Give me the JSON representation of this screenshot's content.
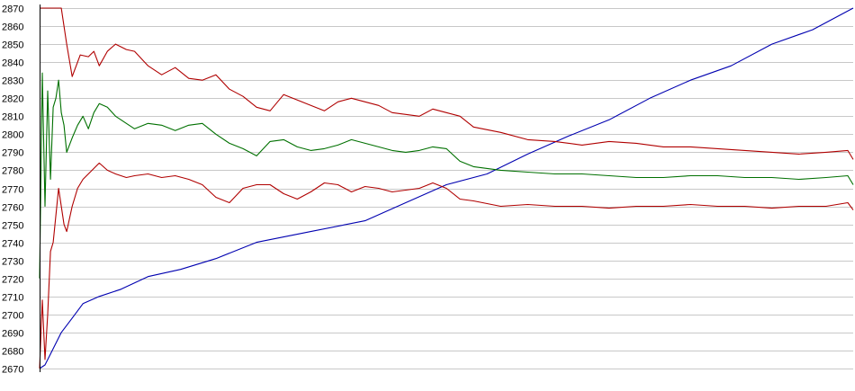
{
  "chart_data": {
    "type": "line",
    "title": "",
    "xlabel": "",
    "ylabel": "",
    "ylim": [
      2670,
      2870
    ],
    "xlim": [
      0,
      300
    ],
    "grid": true,
    "legend": "none",
    "yticks": [
      2670,
      2680,
      2690,
      2700,
      2710,
      2720,
      2730,
      2740,
      2750,
      2760,
      2770,
      2780,
      2790,
      2800,
      2810,
      2820,
      2830,
      2840,
      2850,
      2860,
      2870
    ],
    "colors": {
      "grid": "#c8c8c8",
      "axis": "#000000",
      "red": "#b00000",
      "green": "#007000",
      "blue": "#0000b0"
    },
    "series": [
      {
        "color": "#0000b0",
        "x": [
          0,
          2,
          5,
          8,
          12,
          16,
          22,
          30,
          40,
          52,
          65,
          80,
          100,
          120,
          135,
          150,
          165,
          180,
          195,
          210,
          225,
          240,
          255,
          270,
          285,
          300
        ],
        "y": [
          2670,
          2672,
          2681,
          2690,
          2698,
          2706,
          2710,
          2714,
          2721,
          2725,
          2731,
          2740,
          2746,
          2752,
          2762,
          2772,
          2778,
          2789,
          2799,
          2808,
          2820,
          2830,
          2838,
          2850,
          2858,
          2870
        ]
      },
      {
        "color": "#b00000",
        "x": [
          0,
          3,
          6,
          8,
          10,
          12,
          15,
          18,
          20,
          22,
          25,
          28,
          32,
          35,
          40,
          45,
          50,
          55,
          60,
          65,
          70,
          75,
          80,
          85,
          90,
          95,
          100,
          105,
          110,
          115,
          120,
          125,
          130,
          135,
          140,
          145,
          150,
          155,
          160,
          170,
          180,
          190,
          200,
          210,
          220,
          230,
          240,
          250,
          260,
          270,
          280,
          290,
          298,
          300
        ],
        "y": [
          2870,
          2870,
          2870,
          2870,
          2850,
          2832,
          2844,
          2843,
          2846,
          2838,
          2846,
          2850,
          2847,
          2846,
          2838,
          2833,
          2837,
          2831,
          2830,
          2833,
          2825,
          2821,
          2815,
          2813,
          2822,
          2819,
          2816,
          2813,
          2818,
          2820,
          2818,
          2816,
          2812,
          2811,
          2810,
          2814,
          2812,
          2810,
          2804,
          2801,
          2797,
          2796,
          2794,
          2796,
          2795,
          2793,
          2793,
          2792,
          2791,
          2790,
          2789,
          2790,
          2791,
          2786
        ]
      },
      {
        "color": "#007000",
        "x": [
          0,
          1,
          2,
          3,
          4,
          5,
          6,
          7,
          8,
          9,
          10,
          12,
          14,
          16,
          18,
          20,
          22,
          25,
          28,
          32,
          35,
          40,
          45,
          50,
          55,
          60,
          65,
          70,
          75,
          80,
          85,
          90,
          95,
          100,
          105,
          110,
          115,
          120,
          125,
          130,
          135,
          140,
          145,
          150,
          155,
          160,
          170,
          180,
          190,
          200,
          210,
          220,
          230,
          240,
          250,
          260,
          270,
          280,
          290,
          298,
          300
        ],
        "y": [
          2720,
          2834,
          2760,
          2824,
          2775,
          2815,
          2820,
          2830,
          2812,
          2805,
          2790,
          2798,
          2805,
          2810,
          2803,
          2812,
          2817,
          2815,
          2810,
          2806,
          2803,
          2806,
          2805,
          2802,
          2805,
          2806,
          2800,
          2795,
          2792,
          2788,
          2796,
          2797,
          2793,
          2791,
          2792,
          2794,
          2797,
          2795,
          2793,
          2791,
          2790,
          2791,
          2793,
          2792,
          2785,
          2782,
          2780,
          2779,
          2778,
          2778,
          2777,
          2776,
          2776,
          2777,
          2777,
          2776,
          2776,
          2775,
          2776,
          2777,
          2772
        ]
      },
      {
        "color": "#b00000",
        "x": [
          0,
          1,
          2,
          3,
          4,
          5,
          6,
          7,
          8,
          9,
          10,
          12,
          14,
          16,
          18,
          20,
          22,
          25,
          28,
          32,
          35,
          40,
          45,
          50,
          55,
          60,
          65,
          70,
          75,
          80,
          85,
          90,
          95,
          100,
          105,
          110,
          115,
          120,
          125,
          130,
          135,
          140,
          145,
          150,
          155,
          160,
          170,
          180,
          190,
          200,
          210,
          220,
          230,
          240,
          250,
          260,
          270,
          280,
          290,
          298,
          300
        ],
        "y": [
          2670,
          2708,
          2675,
          2700,
          2735,
          2740,
          2755,
          2770,
          2760,
          2750,
          2746,
          2760,
          2770,
          2775,
          2778,
          2781,
          2784,
          2780,
          2778,
          2776,
          2777,
          2778,
          2776,
          2777,
          2775,
          2772,
          2765,
          2762,
          2770,
          2772,
          2772,
          2767,
          2764,
          2768,
          2773,
          2772,
          2768,
          2771,
          2770,
          2768,
          2769,
          2770,
          2773,
          2770,
          2764,
          2763,
          2760,
          2761,
          2760,
          2760,
          2759,
          2760,
          2760,
          2761,
          2760,
          2760,
          2759,
          2760,
          2760,
          2762,
          2758
        ]
      }
    ]
  }
}
